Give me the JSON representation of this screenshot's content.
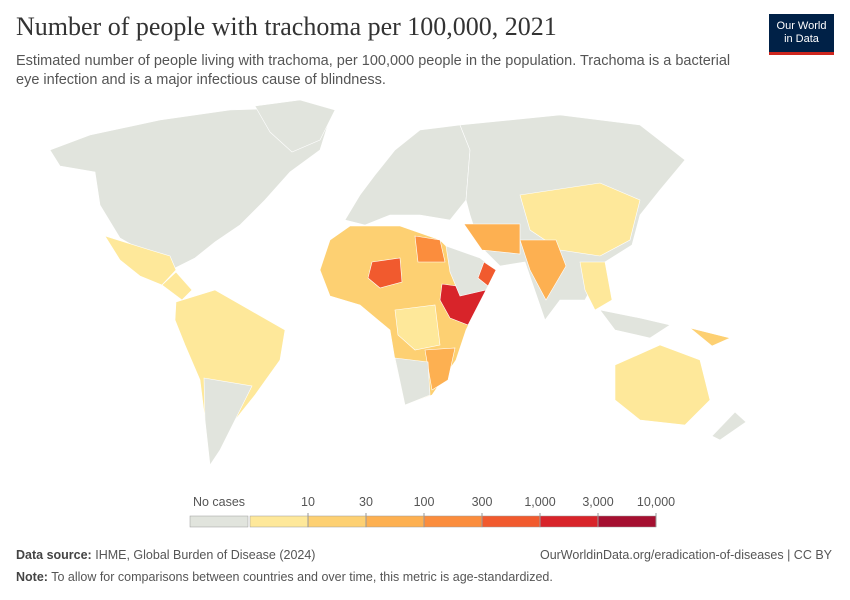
{
  "header": {
    "title": "Number of people with trachoma per 100,000, 2021",
    "subtitle": "Estimated number of people living with trachoma, per 100,000 people in the population. Trachoma is a bacterial eye infection and is a major infectious cause of blindness.",
    "logo": [
      "Our World",
      "in Data"
    ]
  },
  "legend": {
    "no_data": {
      "label": "No cases",
      "color": "#e1e4dd"
    },
    "ticks": [
      10,
      30,
      100,
      300,
      {
        "value": 1000,
        "label": "1,000"
      },
      {
        "value": 3000,
        "label": "3,000"
      },
      {
        "value": 10000,
        "label": "10,000"
      }
    ],
    "colors": [
      "#fee89a",
      "#fdd072",
      "#fdb051",
      "#fb8d3d",
      "#f15a2e",
      "#d8242a",
      "#a50f30"
    ]
  },
  "footer": {
    "source_label": "Data source:",
    "source": "IHME, Global Burden of Disease (2024)",
    "url": "OurWorldinData.org/eradication-of-diseases | CC BY",
    "note_label": "Note:",
    "note": "To allow for comparisons between countries and over time, this metric is age-standardized."
  }
}
